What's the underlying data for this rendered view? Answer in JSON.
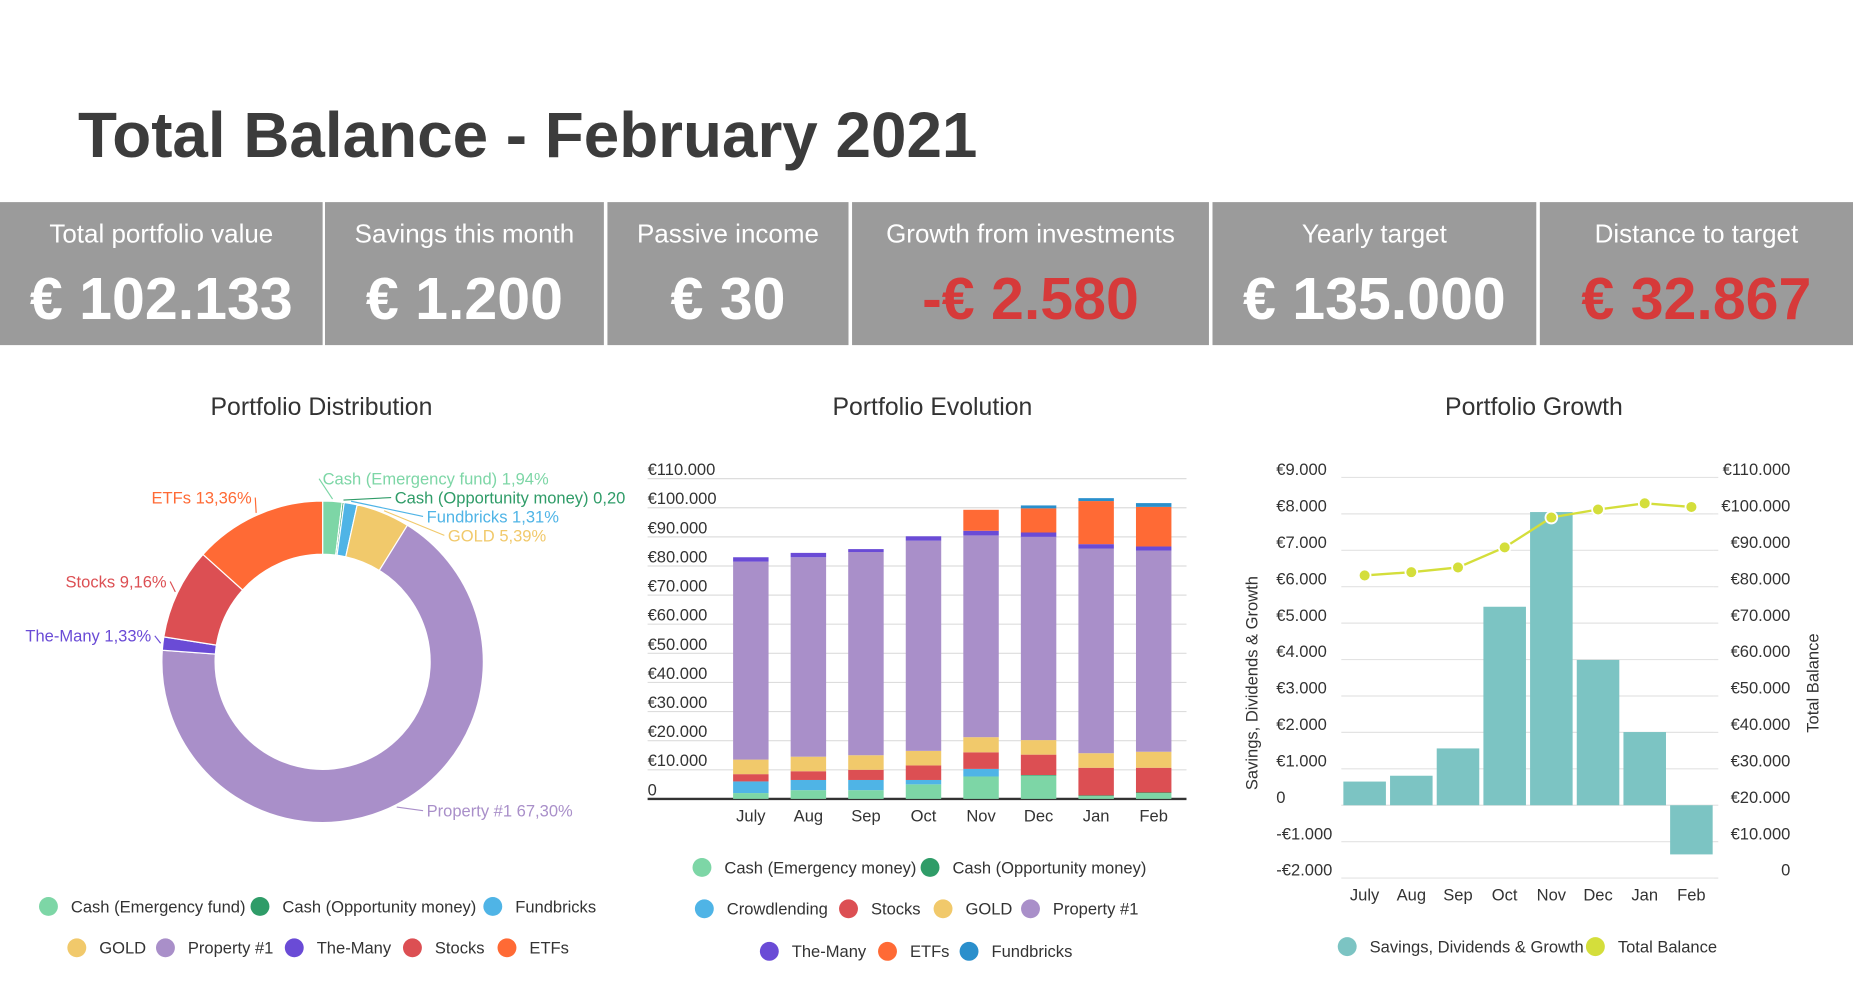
{
  "header": {
    "title": "Total Balance - February 2021"
  },
  "kpis": [
    {
      "label": "Total portfolio value",
      "value": "€ 102.133",
      "color": "#ffffff"
    },
    {
      "label": "Savings this month",
      "value": "€ 1.200",
      "color": "#ffffff"
    },
    {
      "label": "Passive income",
      "value": "€ 30",
      "color": "#ffffff"
    },
    {
      "label": "Growth from investments",
      "value": "-€ 2.580",
      "color": "#d63a3a"
    },
    {
      "label": "Yearly target",
      "value": "€ 135.000",
      "color": "#ffffff"
    },
    {
      "label": "Distance to target",
      "value": "€ 32.867",
      "color": "#d63a3a"
    }
  ],
  "chart_data": [
    {
      "type": "pie",
      "title": "Portfolio Distribution",
      "categories": [
        "Cash (Emergency fund)",
        "Cash (Opportunity money)",
        "Fundbricks",
        "GOLD",
        "Property #1",
        "The-Many",
        "Stocks",
        "ETFs"
      ],
      "values": [
        1.94,
        0.2,
        1.31,
        5.39,
        67.3,
        1.33,
        9.16,
        13.36
      ],
      "value_labels": [
        "1,94%",
        "0,20",
        "1,31%",
        "5,39%",
        "67,30%",
        "1,33%",
        "9,16%",
        "13,36%"
      ],
      "colors": [
        "#7dd6a6",
        "#2f9c68",
        "#4fb4e6",
        "#f1c96b",
        "#a98fc9",
        "#6a4bd6",
        "#dc4f53",
        "#ff6a35"
      ]
    },
    {
      "type": "bar",
      "stacked": true,
      "title": "Portfolio Evolution",
      "categories": [
        "July",
        "Aug",
        "Sep",
        "Oct",
        "Nov",
        "Dec",
        "Jan",
        "Feb"
      ],
      "series": [
        {
          "name": "Cash (Emergency money)",
          "color": "#7dd6a6",
          "values": [
            2000,
            3000,
            3000,
            5000,
            7700,
            8000,
            1000,
            2000
          ]
        },
        {
          "name": "Cash (Opportunity money)",
          "color": "#2f9c68",
          "values": [
            0,
            0,
            0,
            0,
            0,
            200,
            200,
            200
          ]
        },
        {
          "name": "Crowdlending",
          "color": "#4fb4e6",
          "values": [
            4000,
            3500,
            3500,
            1500,
            2600,
            0,
            0,
            0
          ]
        },
        {
          "name": "Stocks",
          "color": "#dc4f53",
          "values": [
            2500,
            3000,
            3500,
            5000,
            5700,
            7000,
            9500,
            8500
          ]
        },
        {
          "name": "GOLD",
          "color": "#f1c96b",
          "values": [
            5000,
            5000,
            5000,
            5000,
            5200,
            5000,
            5000,
            5500
          ]
        },
        {
          "name": "Property #1",
          "color": "#a98fc9",
          "values": [
            68000,
            68500,
            69800,
            72200,
            69300,
            69800,
            70300,
            69100
          ]
        },
        {
          "name": "The-Many",
          "color": "#6a4bd6",
          "values": [
            1500,
            1500,
            1000,
            1500,
            1600,
            1500,
            1500,
            1400
          ]
        },
        {
          "name": "ETFs",
          "color": "#ff6a35",
          "values": [
            0,
            0,
            0,
            0,
            7200,
            8300,
            14800,
            13600
          ]
        },
        {
          "name": "Fundbricks",
          "color": "#2a8fcc",
          "values": [
            0,
            0,
            0,
            0,
            0,
            1000,
            1000,
            1300
          ]
        }
      ],
      "ylim": [
        0,
        110000
      ],
      "yticks": [
        0,
        {
          "value": 10000,
          "label": "€10.000"
        },
        {
          "value": 20000,
          "label": "€20.000"
        },
        {
          "value": 30000,
          "label": "€30.000"
        },
        {
          "value": 40000,
          "label": "€40.000"
        },
        {
          "value": 50000,
          "label": "€50.000"
        },
        {
          "value": 60000,
          "label": "€60.000"
        },
        {
          "value": 70000,
          "label": "€70.000"
        },
        {
          "value": 80000,
          "label": "€80.000"
        },
        {
          "value": 90000,
          "label": "€90.000"
        },
        {
          "value": 100000,
          "label": "€100.000"
        },
        {
          "value": 110000,
          "label": "€110.000"
        }
      ],
      "grid": true
    },
    {
      "type": "combo",
      "title": "Portfolio Growth",
      "categories": [
        "July",
        "Aug",
        "Sep",
        "Oct",
        "Nov",
        "Dec",
        "Jan",
        "Feb"
      ],
      "ylabel": "Savings, Dividends & Growth",
      "y2label": "Total Balance",
      "series": [
        {
          "name": "Savings, Dividends & Growth",
          "type": "bar",
          "color": "#7cc4c3",
          "values": [
            650,
            810,
            1560,
            5450,
            8050,
            3990,
            2010,
            -1350
          ]
        },
        {
          "name": "Total Balance",
          "type": "line",
          "axis": "y2",
          "color": "#d4de3b",
          "values": [
            83100,
            84000,
            85300,
            90800,
            99000,
            101200,
            102900,
            101900
          ]
        }
      ],
      "ylim": [
        -2000,
        9000
      ],
      "yticks": [
        {
          "value": -2000,
          "label": "-€2.000"
        },
        {
          "value": -1000,
          "label": "-€1.000"
        },
        0,
        {
          "value": 1000,
          "label": "€1.000"
        },
        {
          "value": 2000,
          "label": "€2.000"
        },
        {
          "value": 3000,
          "label": "€3.000"
        },
        {
          "value": 4000,
          "label": "€4.000"
        },
        {
          "value": 5000,
          "label": "€5.000"
        },
        {
          "value": 6000,
          "label": "€6.000"
        },
        {
          "value": 7000,
          "label": "€7.000"
        },
        {
          "value": 8000,
          "label": "€8.000"
        },
        {
          "value": 9000,
          "label": "€9.000"
        }
      ],
      "y2lim": [
        0,
        110000
      ],
      "y2ticks": [
        0,
        {
          "value": 10000,
          "label": "€10.000"
        },
        {
          "value": 20000,
          "label": "€20.000"
        },
        {
          "value": 30000,
          "label": "€30.000"
        },
        {
          "value": 40000,
          "label": "€40.000"
        },
        {
          "value": 50000,
          "label": "€50.000"
        },
        {
          "value": 60000,
          "label": "€60.000"
        },
        {
          "value": 70000,
          "label": "€70.000"
        },
        {
          "value": 80000,
          "label": "€80.000"
        },
        {
          "value": 90000,
          "label": "€90.000"
        },
        {
          "value": 100000,
          "label": "€100.000"
        },
        {
          "value": 110000,
          "label": "€110.000"
        }
      ],
      "grid": true
    }
  ]
}
